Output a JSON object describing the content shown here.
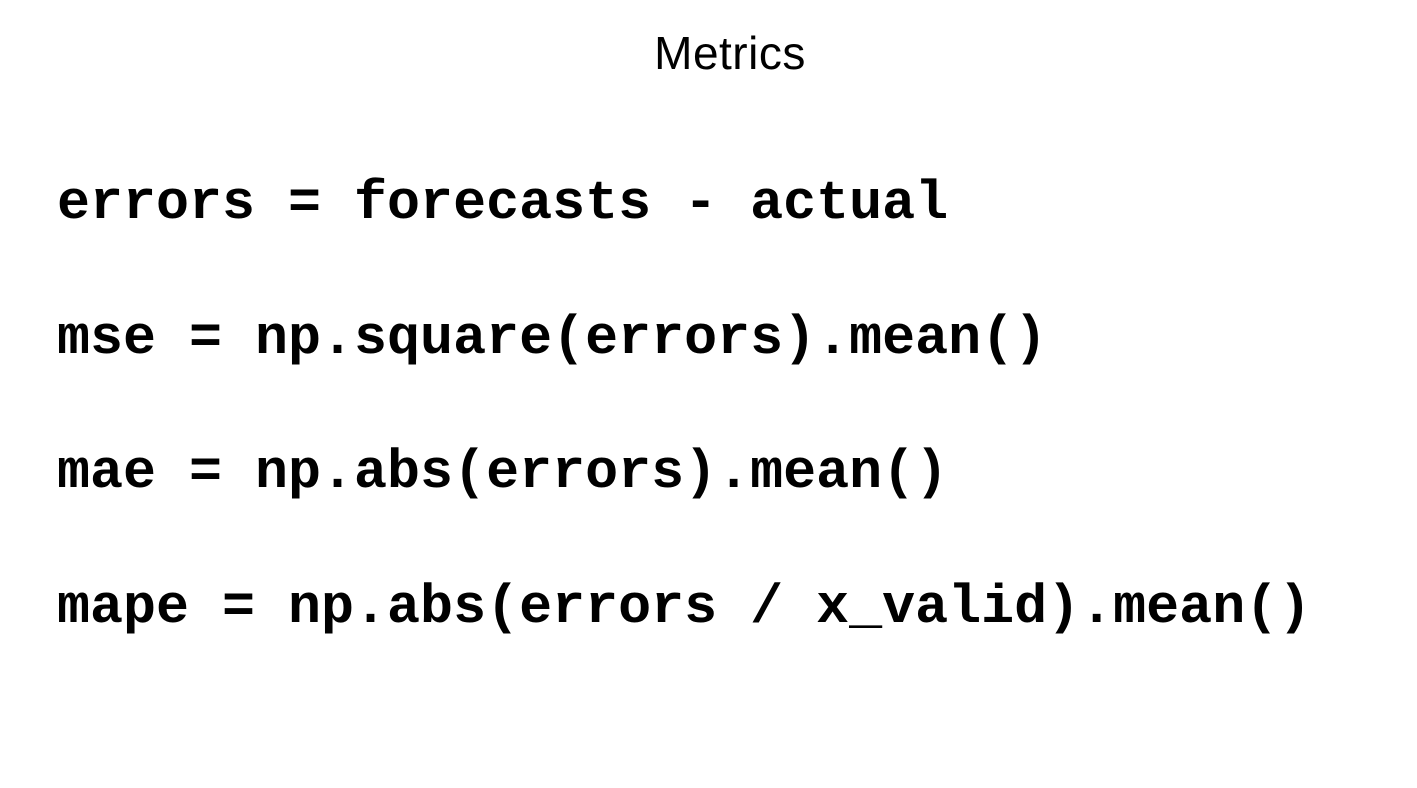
{
  "slide": {
    "title": "Metrics",
    "code_lines": [
      "errors = forecasts - actual",
      "mse = np.square(errors).mean()",
      "mae = np.abs(errors).mean()",
      "mape = np.abs(errors / x_valid).mean()"
    ]
  }
}
